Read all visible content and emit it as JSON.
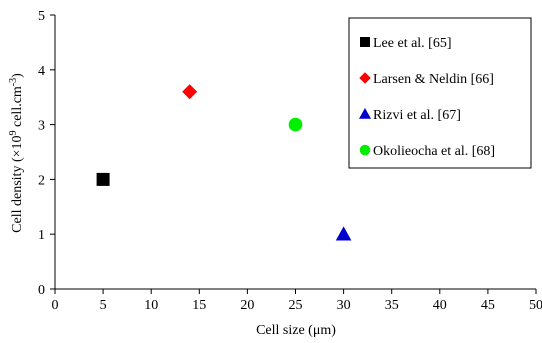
{
  "chart_data": {
    "type": "scatter",
    "title": "",
    "xlabel": "Cell size (μm)",
    "ylabel": {
      "main": "Cell density (×10",
      "sup1": "9",
      "middle": " cell.cm",
      "sup2": "-3",
      "end": ")"
    },
    "xlim": [
      0,
      50
    ],
    "ylim": [
      0,
      5
    ],
    "xticks": [
      0,
      5,
      10,
      15,
      20,
      25,
      30,
      35,
      40,
      45,
      50
    ],
    "yticks": [
      0,
      1,
      2,
      3,
      4,
      5
    ],
    "grid": false,
    "legend_position": "top-right",
    "series": [
      {
        "name": "Lee et al. [65]",
        "x": [
          5
        ],
        "y": [
          2
        ],
        "marker": "square",
        "color": "#000000"
      },
      {
        "name": "Larsen & Neldin [66]",
        "x": [
          14
        ],
        "y": [
          3.6
        ],
        "marker": "diamond",
        "color": "#ff0000"
      },
      {
        "name": "Rizvi et al. [67]",
        "x": [
          30
        ],
        "y": [
          1
        ],
        "marker": "triangle",
        "color": "#0000cc"
      },
      {
        "name": "Okolieocha et al. [68]",
        "x": [
          25
        ],
        "y": [
          3
        ],
        "marker": "circle",
        "color": "#00ee00"
      }
    ]
  }
}
